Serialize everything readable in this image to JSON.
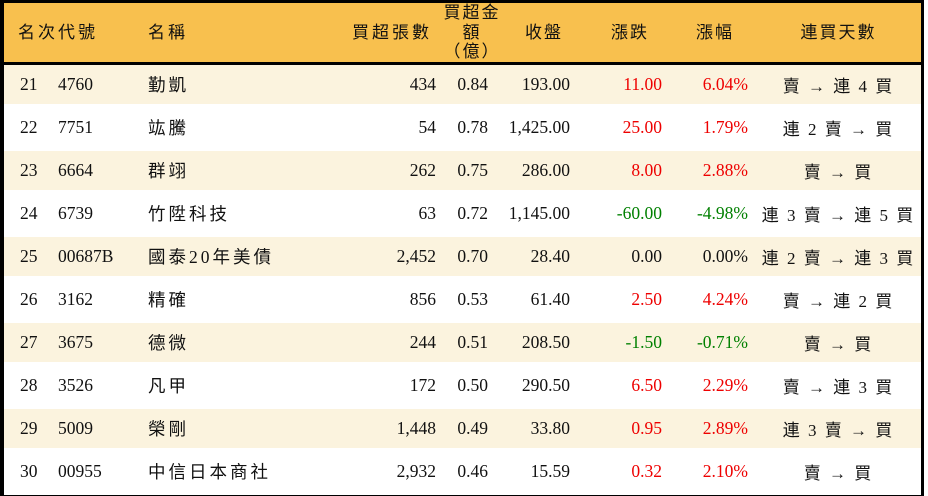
{
  "colors": {
    "header_bg": "#F8C04E",
    "stripe_bg": "#FBF3DE",
    "row_bg": "#FFFFFF",
    "up_red": "#EE0000",
    "down_green": "#008000",
    "border_black": "#000000"
  },
  "chart_data": {
    "type": "table",
    "title": "",
    "columns": [
      {
        "key": "rank",
        "label": "名次"
      },
      {
        "key": "code",
        "label": "代號"
      },
      {
        "key": "name",
        "label": "名稱"
      },
      {
        "key": "buy_volume",
        "label": "買超張數"
      },
      {
        "key": "buy_amount",
        "label": "買超金額\n（億）"
      },
      {
        "key": "close",
        "label": "收盤"
      },
      {
        "key": "change",
        "label": "漲跌"
      },
      {
        "key": "change_pct",
        "label": "漲幅"
      },
      {
        "key": "streak",
        "label": "連買天數"
      }
    ],
    "rows": [
      {
        "rank": "21",
        "code": "4760",
        "name": "勤凱",
        "buy_volume": "434",
        "buy_amount": "0.84",
        "close": "193.00",
        "change": "11.00",
        "change_pct": "6.04%",
        "streak": "賣 → 連 4 買",
        "trend": "up"
      },
      {
        "rank": "22",
        "code": "7751",
        "name": "竑騰",
        "buy_volume": "54",
        "buy_amount": "0.78",
        "close": "1,425.00",
        "change": "25.00",
        "change_pct": "1.79%",
        "streak": "連 2 賣 → 買",
        "trend": "up"
      },
      {
        "rank": "23",
        "code": "6664",
        "name": "群翊",
        "buy_volume": "262",
        "buy_amount": "0.75",
        "close": "286.00",
        "change": "8.00",
        "change_pct": "2.88%",
        "streak": "賣 → 買",
        "trend": "up"
      },
      {
        "rank": "24",
        "code": "6739",
        "name": "竹陞科技",
        "buy_volume": "63",
        "buy_amount": "0.72",
        "close": "1,145.00",
        "change": "-60.00",
        "change_pct": "-4.98%",
        "streak": "連 3 賣 → 連 5 買",
        "trend": "down"
      },
      {
        "rank": "25",
        "code": "00687B",
        "name": "國泰20年美債",
        "buy_volume": "2,452",
        "buy_amount": "0.70",
        "close": "28.40",
        "change": "0.00",
        "change_pct": "0.00%",
        "streak": "連 2 賣 → 連 3 買",
        "trend": "flat"
      },
      {
        "rank": "26",
        "code": "3162",
        "name": "精確",
        "buy_volume": "856",
        "buy_amount": "0.53",
        "close": "61.40",
        "change": "2.50",
        "change_pct": "4.24%",
        "streak": "賣 → 連 2 買",
        "trend": "up"
      },
      {
        "rank": "27",
        "code": "3675",
        "name": "德微",
        "buy_volume": "244",
        "buy_amount": "0.51",
        "close": "208.50",
        "change": "-1.50",
        "change_pct": "-0.71%",
        "streak": "賣 → 買",
        "trend": "down"
      },
      {
        "rank": "28",
        "code": "3526",
        "name": "凡甲",
        "buy_volume": "172",
        "buy_amount": "0.50",
        "close": "290.50",
        "change": "6.50",
        "change_pct": "2.29%",
        "streak": "賣 → 連 3 買",
        "trend": "up"
      },
      {
        "rank": "29",
        "code": "5009",
        "name": "榮剛",
        "buy_volume": "1,448",
        "buy_amount": "0.49",
        "close": "33.80",
        "change": "0.95",
        "change_pct": "2.89%",
        "streak": "連 3 賣 → 買",
        "trend": "up"
      },
      {
        "rank": "30",
        "code": "00955",
        "name": "中信日本商社",
        "buy_volume": "2,932",
        "buy_amount": "0.46",
        "close": "15.59",
        "change": "0.32",
        "change_pct": "2.10%",
        "streak": "賣 → 買",
        "trend": "up"
      }
    ]
  }
}
